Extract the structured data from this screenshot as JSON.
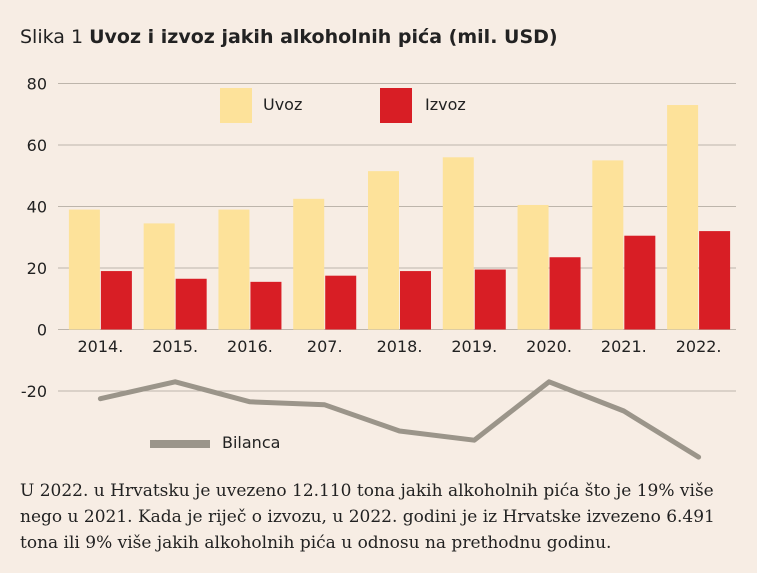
{
  "figure": {
    "label": "Slika 1",
    "title": "Uvoz i izvoz jakih alkoholnih pića (mil. USD)"
  },
  "chart_data": {
    "type": "bar",
    "categories": [
      "2014.",
      "2015.",
      "2016.",
      "207.",
      "2018.",
      "2019.",
      "2020.",
      "2021.",
      "2022."
    ],
    "series": [
      {
        "name": "Uvoz",
        "type": "bar",
        "color": "#fde29a",
        "values": [
          39,
          34.5,
          39,
          42.5,
          51.5,
          56,
          40.5,
          55,
          73
        ]
      },
      {
        "name": "Izvoz",
        "type": "bar",
        "color": "#d81e25",
        "values": [
          19,
          16.5,
          15.5,
          17.5,
          19,
          19.5,
          23.5,
          30.5,
          32
        ]
      },
      {
        "name": "Bilanca",
        "type": "line",
        "color": "#9b958a",
        "values": [
          -22.5,
          -17,
          -23.5,
          -24.5,
          -33,
          -36,
          -17,
          -26.5,
          -41.5
        ]
      }
    ],
    "y_ticks": [
      80,
      60,
      40,
      20,
      0,
      -20
    ],
    "ylim": [
      -40,
      80
    ],
    "grid": true,
    "legend": [
      "top",
      "bottom-left"
    ]
  },
  "caption": "U 2022. u Hrvatsku je uvezeno 12.110 tona jakih alkoholnih pića što je 19% više nego u 2021. Kada je riječ o izvozu, u 2022. godini je iz Hrvatske izvezeno 6.491 tona ili 9% više jakih alkoholnih pića u odnosu na prethodnu godinu."
}
